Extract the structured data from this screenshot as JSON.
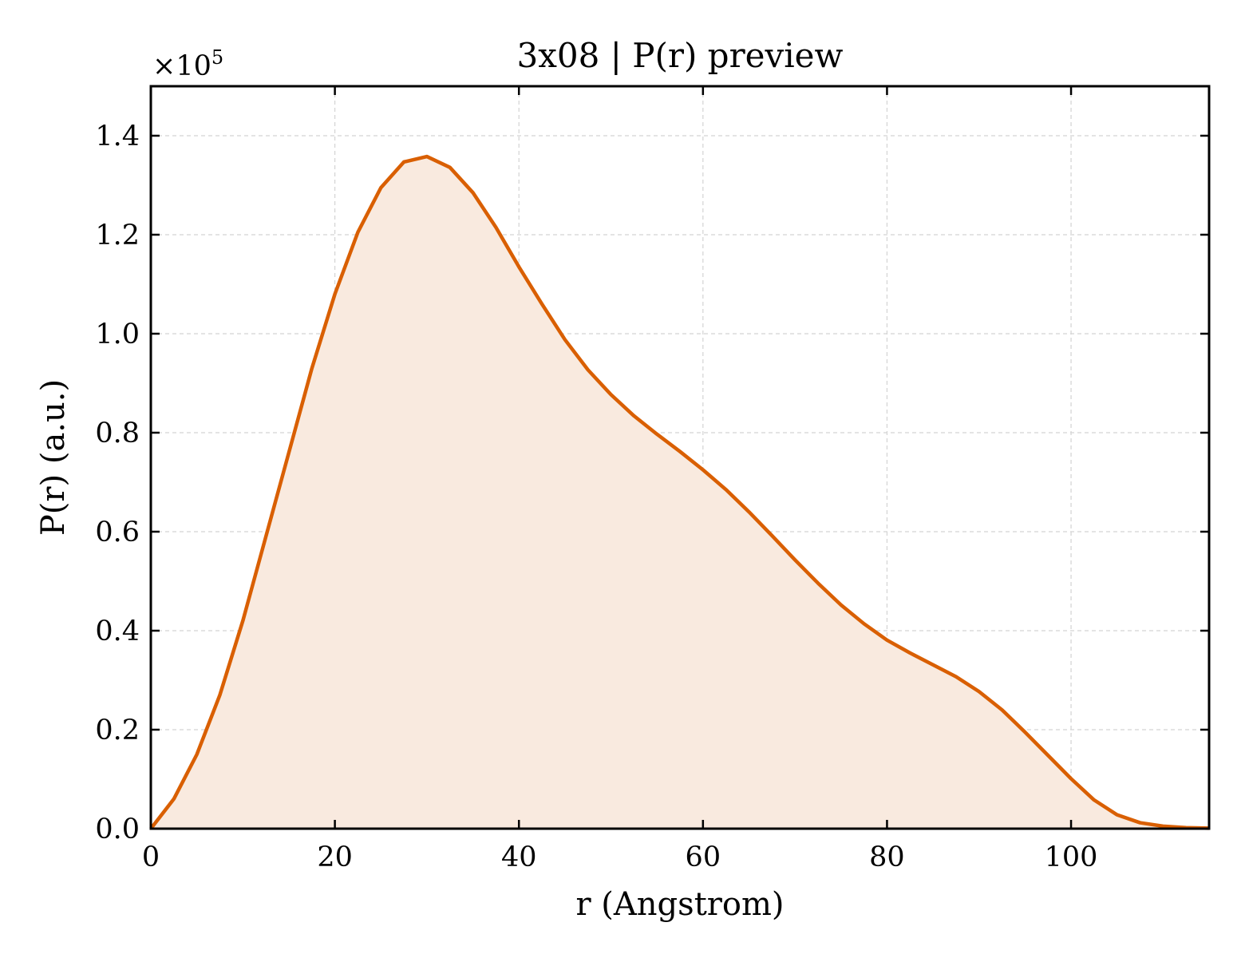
{
  "chart_data": {
    "type": "area",
    "title": "3x08 | P(r) preview",
    "xlabel": "r (Angstrom)",
    "ylabel": "P(r) (a.u.)",
    "y_multiplier": {
      "base": "×10",
      "exponent": "5"
    },
    "xlim": [
      0,
      115
    ],
    "ylim": [
      0,
      1.5
    ],
    "x_ticks": [
      0,
      20,
      40,
      60,
      80,
      100
    ],
    "x_tick_labels": [
      "0",
      "20",
      "40",
      "60",
      "80",
      "100"
    ],
    "y_ticks": [
      0,
      0.2,
      0.4,
      0.6,
      0.8,
      1.0,
      1.2,
      1.4
    ],
    "y_tick_labels": [
      "0.0",
      "0.2",
      "0.4",
      "0.6",
      "0.8",
      "1.0",
      "1.2",
      "1.4"
    ],
    "grid": true,
    "ticks_direction": "in",
    "colors": {
      "line": "#d95f02",
      "fill": "#f9eadf",
      "grid": "#d3d3d3",
      "axes": "#000000"
    },
    "series": [
      {
        "x": [
          0,
          2.5,
          5,
          7.5,
          10,
          12.5,
          15,
          17.5,
          20,
          22.5,
          25,
          27.5,
          30,
          32.5,
          35,
          37.5,
          40,
          42.5,
          45,
          47.5,
          50,
          52.5,
          55,
          57.5,
          60,
          62.5,
          65,
          67.5,
          70,
          72.5,
          75,
          77.5,
          80,
          82.5,
          85,
          87.5,
          90,
          92.5,
          95,
          97.5,
          100,
          102.5,
          105,
          107.5,
          110,
          112.5,
          115
        ],
        "y": [
          0.0,
          0.06,
          0.15,
          0.27,
          0.42,
          0.59,
          0.76,
          0.93,
          1.08,
          1.205,
          1.295,
          1.347,
          1.358,
          1.336,
          1.285,
          1.215,
          1.135,
          1.06,
          0.988,
          0.927,
          0.877,
          0.834,
          0.797,
          0.762,
          0.725,
          0.685,
          0.64,
          0.592,
          0.543,
          0.496,
          0.452,
          0.414,
          0.381,
          0.355,
          0.331,
          0.307,
          0.277,
          0.24,
          0.195,
          0.148,
          0.101,
          0.058,
          0.028,
          0.012,
          0.005,
          0.002,
          0.001
        ]
      }
    ]
  }
}
